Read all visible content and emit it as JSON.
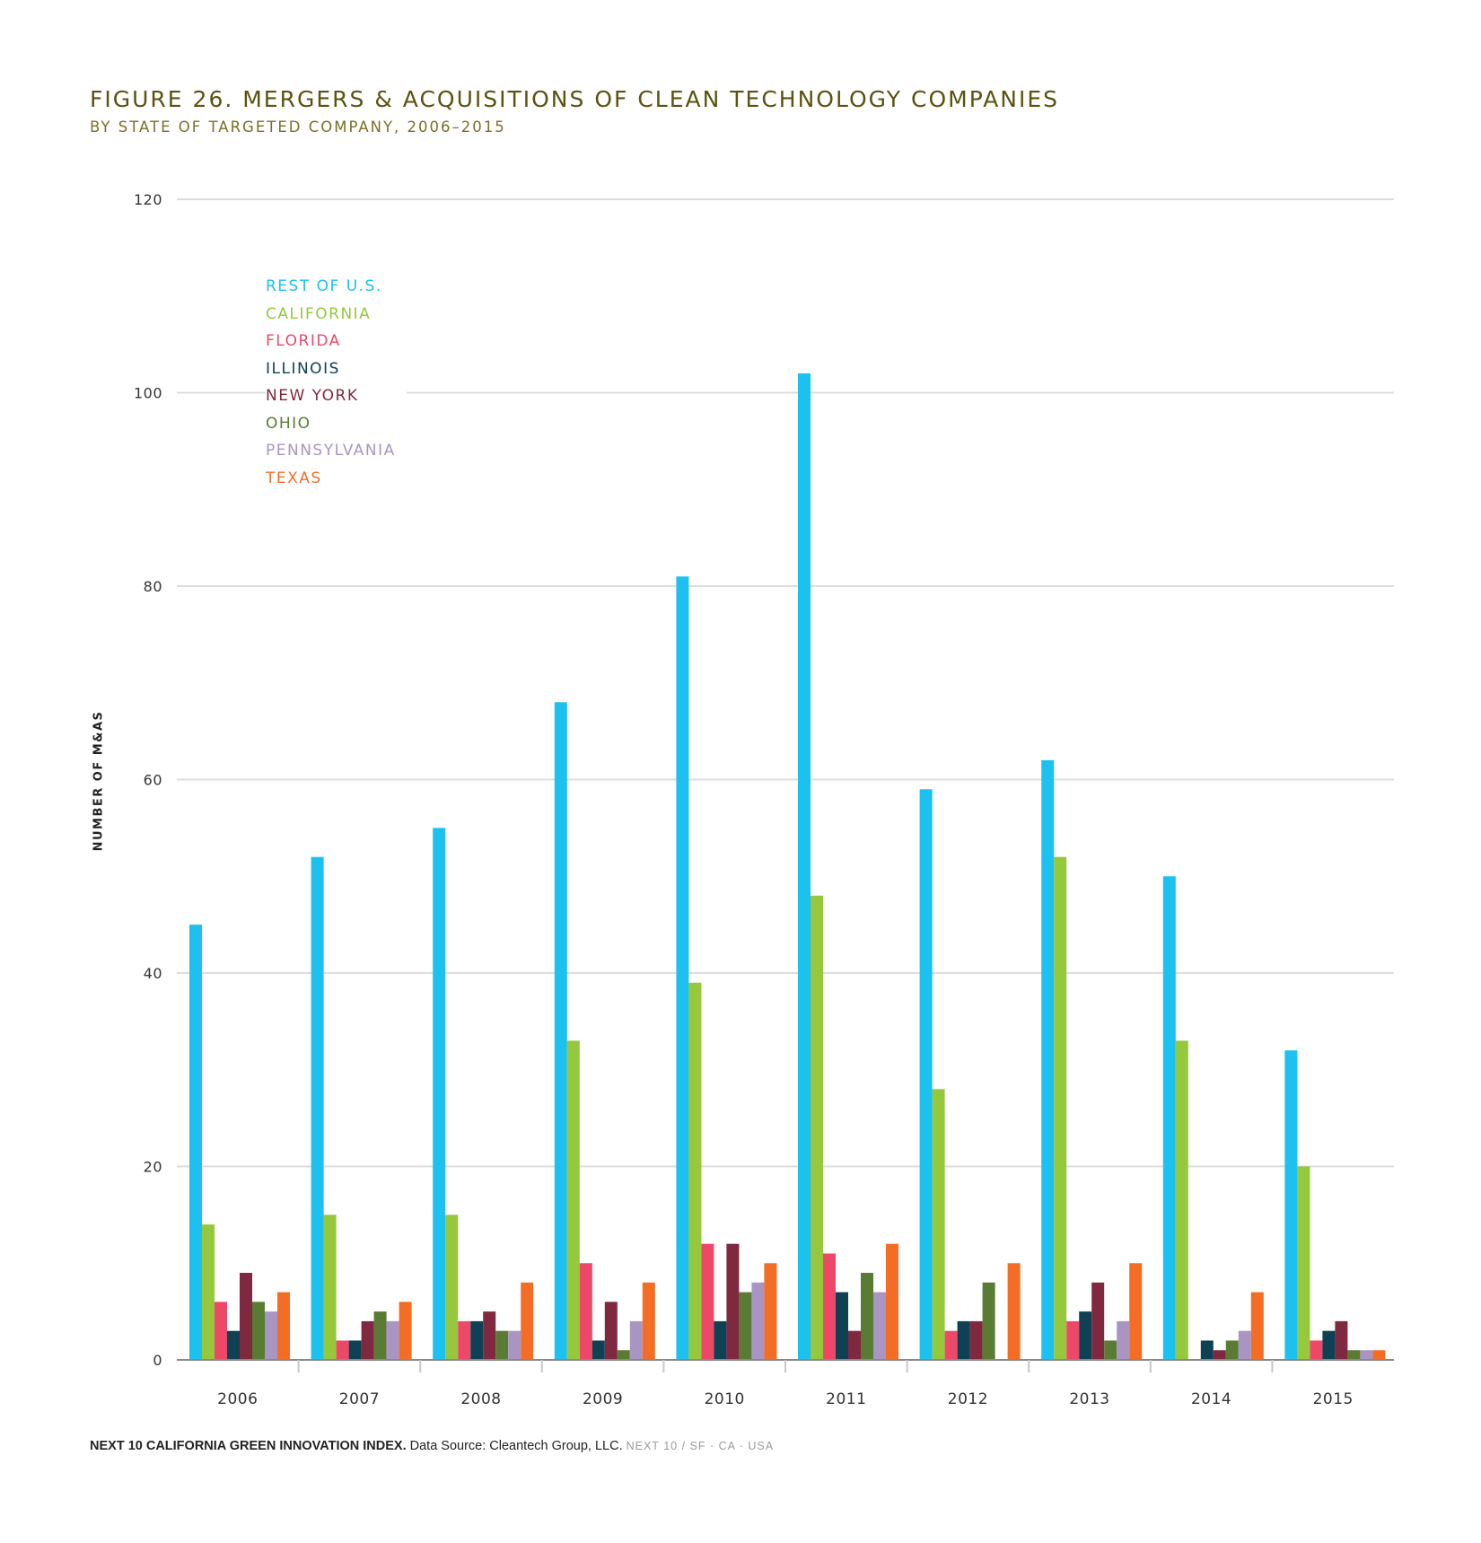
{
  "title": "FIGURE 26. MERGERS & ACQUISITIONS OF CLEAN TECHNOLOGY COMPANIES",
  "subtitle": "BY STATE OF TARGETED COMPANY, 2006–2015",
  "footer": {
    "bold": "NEXT 10 CALIFORNIA GREEN INNOVATION INDEX.",
    "source": " Data Source: Cleantech Group, LLC.",
    "brand": "NEXT 10  /  SF · CA · USA"
  },
  "chart_data": {
    "type": "bar",
    "ylabel": "NUMBER OF M&AS",
    "xlabel": "",
    "ylim": [
      0,
      120
    ],
    "yticks": [
      "0",
      "20",
      "40",
      "60",
      "80",
      "100",
      "120"
    ],
    "grid": true,
    "legend_position": "top-left",
    "categories": [
      "2006",
      "2007",
      "2008",
      "2009",
      "2010",
      "2011",
      "2012",
      "2013",
      "2014",
      "2015"
    ],
    "series": [
      {
        "name": "REST OF U.S.",
        "color": "#1cc1ef",
        "values": [
          45,
          52,
          55,
          68,
          81,
          102,
          59,
          62,
          50,
          32
        ]
      },
      {
        "name": "CALIFORNIA",
        "color": "#95c83d",
        "values": [
          14,
          15,
          15,
          33,
          39,
          48,
          28,
          52,
          33,
          20
        ]
      },
      {
        "name": "FLORIDA",
        "color": "#ee4869",
        "values": [
          6,
          2,
          4,
          10,
          12,
          11,
          3,
          4,
          0,
          2
        ]
      },
      {
        "name": "ILLINOIS",
        "color": "#0e4154",
        "values": [
          3,
          2,
          4,
          2,
          4,
          7,
          4,
          5,
          2,
          3
        ]
      },
      {
        "name": "NEW YORK",
        "color": "#7f2840",
        "values": [
          9,
          4,
          5,
          6,
          12,
          3,
          4,
          8,
          1,
          4
        ]
      },
      {
        "name": "OHIO",
        "color": "#5a7b33",
        "values": [
          6,
          5,
          3,
          1,
          7,
          9,
          8,
          2,
          2,
          1
        ]
      },
      {
        "name": "PENNSYLVANIA",
        "color": "#a895c3",
        "values": [
          5,
          4,
          3,
          4,
          8,
          7,
          0,
          4,
          3,
          1
        ]
      },
      {
        "name": "TEXAS",
        "color": "#f46d25",
        "values": [
          7,
          6,
          8,
          8,
          10,
          12,
          10,
          10,
          7,
          1
        ]
      }
    ]
  }
}
